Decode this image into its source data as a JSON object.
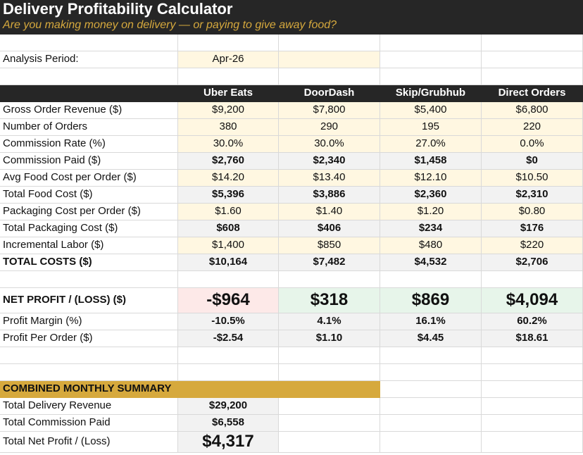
{
  "title": "Delivery Profitability Calculator",
  "subtitle": "Are you making money on delivery — or paying to give away food?",
  "period": {
    "label": "Analysis Period:",
    "value": "Apr-26"
  },
  "columns": [
    "Uber Eats",
    "DoorDash",
    "Skip/Grubhub",
    "Direct Orders"
  ],
  "rows": [
    {
      "label": "Gross Order Revenue ($)",
      "values": [
        "$9,200",
        "$7,800",
        "$5,400",
        "$6,800"
      ]
    },
    {
      "label": "Number of Orders",
      "values": [
        "380",
        "290",
        "195",
        "220"
      ]
    },
    {
      "label": "Commission Rate (%)",
      "values": [
        "30.0%",
        "30.0%",
        "27.0%",
        "0.0%"
      ]
    },
    {
      "label": "Commission Paid ($)",
      "values": [
        "$2,760",
        "$2,340",
        "$1,458",
        "$0"
      ]
    },
    {
      "label": "Avg Food Cost per Order ($)",
      "values": [
        "$14.20",
        "$13.40",
        "$12.10",
        "$10.50"
      ]
    },
    {
      "label": "Total Food Cost ($)",
      "values": [
        "$5,396",
        "$3,886",
        "$2,360",
        "$2,310"
      ]
    },
    {
      "label": "Packaging Cost per Order ($)",
      "values": [
        "$1.60",
        "$1.40",
        "$1.20",
        "$0.80"
      ]
    },
    {
      "label": "Total Packaging Cost ($)",
      "values": [
        "$608",
        "$406",
        "$234",
        "$176"
      ]
    },
    {
      "label": "Incremental Labor ($)",
      "values": [
        "$1,400",
        "$850",
        "$480",
        "$220"
      ]
    },
    {
      "label": "TOTAL COSTS ($)",
      "values": [
        "$10,164",
        "$7,482",
        "$4,532",
        "$2,706"
      ]
    }
  ],
  "net_profit": {
    "label": "NET PROFIT / (LOSS) ($)",
    "values": [
      "-$964",
      "$318",
      "$869",
      "$4,094"
    ]
  },
  "margin": {
    "label": "Profit Margin (%)",
    "values": [
      "-10.5%",
      "4.1%",
      "16.1%",
      "60.2%"
    ]
  },
  "per_order": {
    "label": "Profit Per Order ($)",
    "values": [
      "-$2.54",
      "$1.10",
      "$4.45",
      "$18.61"
    ]
  },
  "summary": {
    "header": "COMBINED MONTHLY SUMMARY",
    "items": [
      {
        "label": "Total Delivery Revenue",
        "value": "$29,200"
      },
      {
        "label": "Total Commission Paid",
        "value": "$6,558"
      },
      {
        "label": "Total Net Profit / (Loss)",
        "value": "$4,317"
      }
    ]
  },
  "colors": {
    "banner": "#262626",
    "accent": "#d6a93d",
    "input_fill": "#fff7e1",
    "calc_fill": "#f2f2f2",
    "loss_fill": "#fde9e8",
    "gain_fill": "#e7f5ea"
  }
}
